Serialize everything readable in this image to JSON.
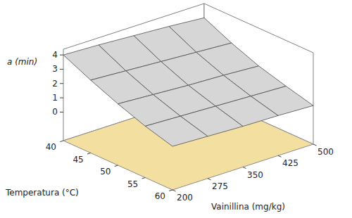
{
  "chart_data": {
    "type": "surface3d",
    "x_label": "Temperatura (°C)",
    "y_label": "Vainillina (mg/kg)",
    "z_label": "a (min)",
    "x": [
      40,
      45,
      50,
      55,
      60
    ],
    "y": [
      200,
      275,
      350,
      425,
      500
    ],
    "z": [
      [
        4.0,
        3.9,
        3.75,
        3.6,
        3.4
      ],
      [
        3.1,
        2.95,
        2.8,
        2.65,
        2.5
      ],
      [
        2.3,
        2.15,
        2.0,
        1.9,
        1.75
      ],
      [
        1.6,
        1.5,
        1.4,
        1.3,
        1.2
      ],
      [
        1.05,
        0.95,
        0.85,
        0.8,
        0.7
      ]
    ],
    "xlim": [
      40,
      60
    ],
    "xticks": [
      40,
      45,
      50,
      55,
      60
    ],
    "ylim": [
      200,
      500
    ],
    "yticks": [
      200,
      275,
      350,
      425,
      500
    ],
    "zlim": [
      -2,
      4.4
    ],
    "zticks": [
      0,
      1,
      2,
      3,
      4
    ],
    "color": "#d6d6d6"
  }
}
